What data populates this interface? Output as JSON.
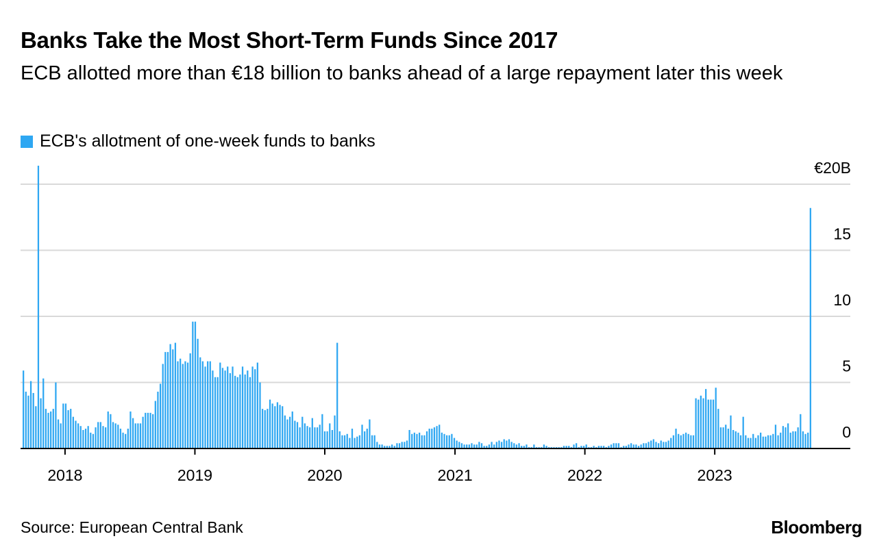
{
  "title": "Banks Take the Most Short-Term Funds Since 2017",
  "subtitle": "ECB allotted more than €18 billion to banks ahead of a large repayment later this week",
  "source": "Source: European Central Bank",
  "brand": "Bloomberg",
  "colors": {
    "bar": "#2ea7f2",
    "grid": "#d9d9d9",
    "axis": "#000000"
  },
  "chart_data": {
    "type": "bar",
    "series": [
      {
        "name": "ECB's allotment of one-week funds to banks",
        "start": "2017-09-06",
        "interval_days": 7,
        "values": [
          5.9,
          4.3,
          4.0,
          5.1,
          4.2,
          3.2,
          21.4,
          3.8,
          5.3,
          3.0,
          2.7,
          2.8,
          3.0,
          5.0,
          2.2,
          1.9,
          3.4,
          3.4,
          2.9,
          3.0,
          2.4,
          2.1,
          1.9,
          1.7,
          1.4,
          1.5,
          1.7,
          1.2,
          1.1,
          1.6,
          2.0,
          2.0,
          1.7,
          1.6,
          2.8,
          2.6,
          2.0,
          1.9,
          1.8,
          1.5,
          1.2,
          1.1,
          1.5,
          2.8,
          2.3,
          1.9,
          1.9,
          1.9,
          2.4,
          2.7,
          2.7,
          2.7,
          2.6,
          3.6,
          4.3,
          4.9,
          6.4,
          7.3,
          7.3,
          7.9,
          7.5,
          8.0,
          6.6,
          6.8,
          6.4,
          6.6,
          6.5,
          7.2,
          9.6,
          9.6,
          8.3,
          6.9,
          6.6,
          6.2,
          6.6,
          6.6,
          5.9,
          5.4,
          5.4,
          6.5,
          6.1,
          5.9,
          6.2,
          5.7,
          6.2,
          5.5,
          5.4,
          5.6,
          6.2,
          5.6,
          5.9,
          5.4,
          6.2,
          6.0,
          6.5,
          5.0,
          3.0,
          2.9,
          3.0,
          3.7,
          3.4,
          3.2,
          3.5,
          3.3,
          3.2,
          2.5,
          2.2,
          2.4,
          2.8,
          2.1,
          2.0,
          1.6,
          2.4,
          1.9,
          1.7,
          1.6,
          2.3,
          1.6,
          1.6,
          1.8,
          2.6,
          1.3,
          1.3,
          1.9,
          1.4,
          2.5,
          8.0,
          1.3,
          1.0,
          1.0,
          1.1,
          0.8,
          1.5,
          0.8,
          0.9,
          1.0,
          1.8,
          1.3,
          1.5,
          2.2,
          1.0,
          1.0,
          0.5,
          0.3,
          0.3,
          0.2,
          0.2,
          0.2,
          0.3,
          0.2,
          0.4,
          0.4,
          0.5,
          0.5,
          0.6,
          1.4,
          1.1,
          1.2,
          1.1,
          1.2,
          1.0,
          1.0,
          1.3,
          1.5,
          1.5,
          1.6,
          1.7,
          1.8,
          1.2,
          1.1,
          1.0,
          1.0,
          1.1,
          0.8,
          0.6,
          0.5,
          0.4,
          0.3,
          0.3,
          0.3,
          0.4,
          0.3,
          0.3,
          0.5,
          0.4,
          0.2,
          0.2,
          0.3,
          0.5,
          0.3,
          0.5,
          0.6,
          0.5,
          0.7,
          0.6,
          0.7,
          0.5,
          0.4,
          0.3,
          0.4,
          0.2,
          0.2,
          0.3,
          0.1,
          0.1,
          0.3,
          0.1,
          0.1,
          0.1,
          0.3,
          0.2,
          0.1,
          0.1,
          0.1,
          0.1,
          0.1,
          0.1,
          0.2,
          0.2,
          0.2,
          0.1,
          0.3,
          0.4,
          0.1,
          0.2,
          0.2,
          0.3,
          0.1,
          0.1,
          0.2,
          0.1,
          0.2,
          0.2,
          0.2,
          0.1,
          0.2,
          0.3,
          0.4,
          0.4,
          0.4,
          0.1,
          0.2,
          0.2,
          0.3,
          0.4,
          0.3,
          0.3,
          0.2,
          0.3,
          0.4,
          0.4,
          0.5,
          0.6,
          0.7,
          0.5,
          0.4,
          0.6,
          0.5,
          0.5,
          0.6,
          0.8,
          1.0,
          1.5,
          1.1,
          1.0,
          1.1,
          1.2,
          1.1,
          1.0,
          1.0,
          3.8,
          3.7,
          4.0,
          3.8,
          4.5,
          3.7,
          3.7,
          3.7,
          4.6,
          3.0,
          1.6,
          1.6,
          1.8,
          1.5,
          2.5,
          1.4,
          1.3,
          1.2,
          1.0,
          2.4,
          1.0,
          0.8,
          0.8,
          1.1,
          0.8,
          1.0,
          1.2,
          0.9,
          0.9,
          1.0,
          1.0,
          1.1,
          1.8,
          1.0,
          1.2,
          1.7,
          1.6,
          1.9,
          1.2,
          1.3,
          1.3,
          1.6,
          2.6,
          1.3,
          1.1,
          1.2,
          18.2
        ]
      }
    ],
    "x_ticks": [
      "2018",
      "2019",
      "2020",
      "2021",
      "2022",
      "2023"
    ],
    "x_tick_dates": [
      "2018-01-01",
      "2019-01-01",
      "2020-01-01",
      "2021-01-01",
      "2022-01-01",
      "2023-01-01"
    ],
    "x_range": [
      "2017-08-29",
      "2024-01-17"
    ],
    "y_ticks": [
      {
        "value": 20,
        "label": "€20B"
      },
      {
        "value": 15,
        "label": "15"
      },
      {
        "value": 10,
        "label": "10"
      },
      {
        "value": 5,
        "label": "5"
      },
      {
        "value": 0,
        "label": "0"
      }
    ],
    "ylim": [
      0,
      20
    ],
    "grid": true,
    "legend_position": "top-left"
  }
}
